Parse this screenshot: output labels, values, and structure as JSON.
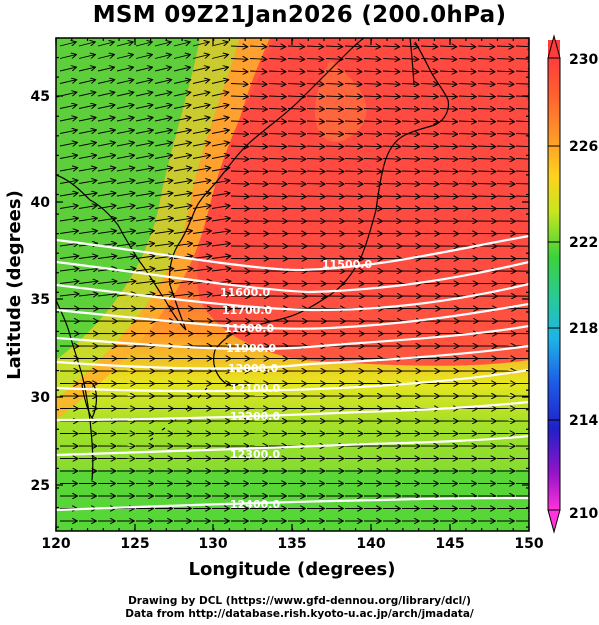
{
  "title": "MSM 09Z21Jan2026 (200.0hPa)",
  "map": {
    "lon_range": [
      120,
      150
    ],
    "lat_range": [
      22.4,
      47.6
    ],
    "x_ticks": [
      "120",
      "125",
      "130",
      "135",
      "140",
      "145",
      "150"
    ],
    "y_ticks": [
      "25",
      "30",
      "35",
      "40",
      "45"
    ],
    "xlabel": "Longitude (degrees)",
    "ylabel": "Latitude  (degrees)",
    "shaded_field_colors": {
      "warm_core": "#ff4a42",
      "orange": "#ff9a2a",
      "yellow": "#e6e620",
      "green": "#3fd23c"
    },
    "vector_color": "#000000",
    "coast_color": "#000000",
    "contour_color": "#ffffff",
    "contour_labels": [
      "11500.0",
      "11600.0",
      "11700.0",
      "11800.0",
      "11900.0",
      "12000.0",
      "12100.0",
      "12200.0",
      "12300.0",
      "12400.0"
    ]
  },
  "colorbar": {
    "ticks": [
      "230",
      "226",
      "222",
      "218",
      "214",
      "210"
    ],
    "colors": [
      "#ff3c3c",
      "#ff8c28",
      "#ffd21e",
      "#c8e61e",
      "#3cd23c",
      "#28c8a0",
      "#1eb4e6",
      "#1e5ae6",
      "#2020c8",
      "#9614c8",
      "#ff32dc"
    ]
  },
  "credits": {
    "line1": "Drawing by DCL (https://www.gfd-dennou.org/library/dcl/)",
    "line2": "Data from http://database.rish.kyoto-u.ac.jp/arch/jmadata/"
  }
}
